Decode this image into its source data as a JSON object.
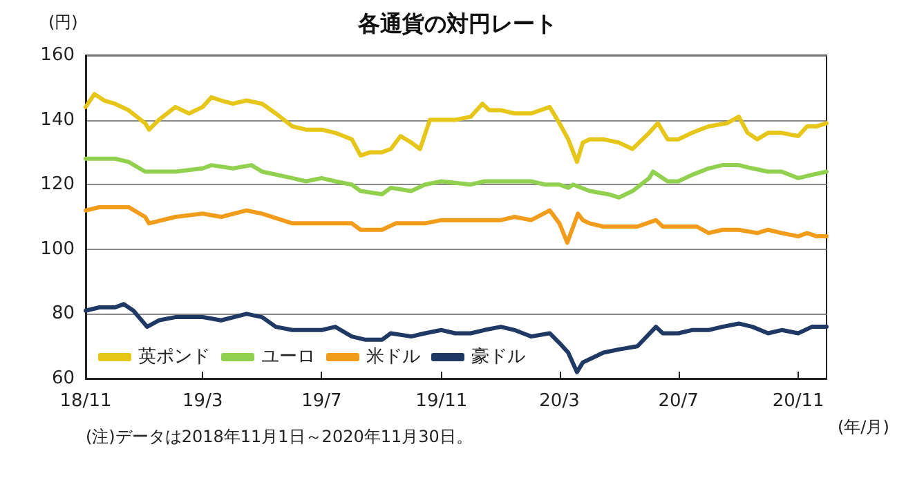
{
  "chart_data": {
    "type": "line",
    "title": "各通貨の対円レート",
    "ylabel": "(円)",
    "xlabel": "(年/月)",
    "annotations": [
      "(注)データは2018年11月1日～2020年11月30日。"
    ],
    "xlim": [
      "2018-11-01",
      "2020-11-30"
    ],
    "xticks": [
      {
        "value": "2018-11-01",
        "label": "18/11"
      },
      {
        "value": "2019-03-01",
        "label": "19/3"
      },
      {
        "value": "2019-07-01",
        "label": "19/7"
      },
      {
        "value": "2019-11-01",
        "label": "19/11"
      },
      {
        "value": "2020-03-01",
        "label": "20/3"
      },
      {
        "value": "2020-07-01",
        "label": "20/7"
      },
      {
        "value": "2020-11-01",
        "label": "20/11"
      }
    ],
    "ylim": [
      60,
      160
    ],
    "yticks": [
      60,
      80,
      100,
      120,
      140,
      160
    ],
    "grid": "y",
    "legend": "bottom left",
    "series": [
      {
        "name": "英ポンド",
        "color": "#e6c619",
        "x": [
          "2018-11-01",
          "2018-11-10",
          "2018-11-20",
          "2018-12-01",
          "2018-12-15",
          "2019-01-01",
          "2019-01-05",
          "2019-01-15",
          "2019-02-01",
          "2019-02-15",
          "2019-03-01",
          "2019-03-10",
          "2019-03-20",
          "2019-04-01",
          "2019-04-15",
          "2019-05-01",
          "2019-05-15",
          "2019-06-01",
          "2019-06-15",
          "2019-07-01",
          "2019-07-15",
          "2019-08-01",
          "2019-08-10",
          "2019-08-20",
          "2019-09-01",
          "2019-09-10",
          "2019-09-20",
          "2019-10-01",
          "2019-10-10",
          "2019-10-20",
          "2019-11-01",
          "2019-11-15",
          "2019-12-01",
          "2019-12-13",
          "2019-12-20",
          "2020-01-01",
          "2020-01-15",
          "2020-02-01",
          "2020-02-20",
          "2020-03-01",
          "2020-03-10",
          "2020-03-19",
          "2020-03-25",
          "2020-04-01",
          "2020-04-15",
          "2020-05-01",
          "2020-05-15",
          "2020-06-01",
          "2020-06-10",
          "2020-06-20",
          "2020-07-01",
          "2020-07-15",
          "2020-08-01",
          "2020-08-20",
          "2020-09-01",
          "2020-09-10",
          "2020-09-20",
          "2020-10-01",
          "2020-10-15",
          "2020-11-01",
          "2020-11-10",
          "2020-11-20",
          "2020-11-30"
        ],
        "values": [
          144,
          148,
          146,
          145,
          143,
          139,
          137,
          140,
          144,
          142,
          144,
          147,
          146,
          145,
          146,
          145,
          142,
          138,
          137,
          137,
          136,
          134,
          129,
          130,
          130,
          131,
          135,
          133,
          131,
          140,
          140,
          140,
          141,
          145,
          143,
          143,
          142,
          142,
          144,
          139,
          134,
          127,
          133,
          134,
          134,
          133,
          131,
          136,
          139,
          134,
          134,
          136,
          138,
          139,
          141,
          136,
          134,
          136,
          136,
          135,
          138,
          138,
          139
        ]
      },
      {
        "name": "ユーロ",
        "color": "#92d050",
        "x": [
          "2018-11-01",
          "2018-12-01",
          "2018-12-15",
          "2019-01-01",
          "2019-02-01",
          "2019-03-01",
          "2019-03-10",
          "2019-04-01",
          "2019-04-20",
          "2019-05-01",
          "2019-06-01",
          "2019-06-15",
          "2019-07-01",
          "2019-07-15",
          "2019-08-01",
          "2019-08-10",
          "2019-09-01",
          "2019-09-10",
          "2019-10-01",
          "2019-10-15",
          "2019-11-01",
          "2019-12-01",
          "2019-12-15",
          "2020-01-01",
          "2020-02-01",
          "2020-02-15",
          "2020-03-01",
          "2020-03-10",
          "2020-03-15",
          "2020-04-01",
          "2020-04-20",
          "2020-05-01",
          "2020-05-15",
          "2020-06-01",
          "2020-06-05",
          "2020-06-20",
          "2020-07-01",
          "2020-07-15",
          "2020-08-01",
          "2020-08-15",
          "2020-09-01",
          "2020-09-15",
          "2020-10-01",
          "2020-10-15",
          "2020-11-01",
          "2020-11-15",
          "2020-11-30"
        ],
        "values": [
          128,
          128,
          127,
          124,
          124,
          125,
          126,
          125,
          126,
          124,
          122,
          121,
          122,
          121,
          120,
          118,
          117,
          119,
          118,
          120,
          121,
          120,
          121,
          121,
          121,
          120,
          120,
          119,
          120,
          118,
          117,
          116,
          118,
          122,
          124,
          121,
          121,
          123,
          125,
          126,
          126,
          125,
          124,
          124,
          122,
          123,
          124
        ]
      },
      {
        "name": "米ドル",
        "color": "#f29c1b",
        "x": [
          "2018-11-01",
          "2018-11-15",
          "2018-12-01",
          "2018-12-15",
          "2019-01-01",
          "2019-01-05",
          "2019-02-01",
          "2019-03-01",
          "2019-03-20",
          "2019-04-15",
          "2019-05-01",
          "2019-06-01",
          "2019-06-15",
          "2019-07-01",
          "2019-07-15",
          "2019-08-01",
          "2019-08-10",
          "2019-09-01",
          "2019-09-15",
          "2019-10-01",
          "2019-10-15",
          "2019-11-01",
          "2019-12-01",
          "2020-01-01",
          "2020-01-15",
          "2020-02-01",
          "2020-02-20",
          "2020-03-01",
          "2020-03-09",
          "2020-03-20",
          "2020-03-25",
          "2020-04-01",
          "2020-04-15",
          "2020-05-01",
          "2020-05-20",
          "2020-06-08",
          "2020-06-15",
          "2020-07-01",
          "2020-07-20",
          "2020-08-01",
          "2020-08-15",
          "2020-09-01",
          "2020-09-20",
          "2020-10-01",
          "2020-10-15",
          "2020-11-01",
          "2020-11-10",
          "2020-11-20",
          "2020-11-30"
        ],
        "values": [
          112,
          113,
          113,
          113,
          110,
          108,
          110,
          111,
          110,
          112,
          111,
          108,
          108,
          108,
          108,
          108,
          106,
          106,
          108,
          108,
          108,
          109,
          109,
          109,
          110,
          109,
          112,
          108,
          102,
          111,
          109,
          108,
          107,
          107,
          107,
          109,
          107,
          107,
          107,
          105,
          106,
          106,
          105,
          106,
          105,
          104,
          105,
          104,
          104
        ]
      },
      {
        "name": "豪ドル",
        "color": "#1f3864",
        "x": [
          "2018-11-01",
          "2018-11-15",
          "2018-12-01",
          "2018-12-10",
          "2018-12-20",
          "2019-01-03",
          "2019-01-15",
          "2019-02-01",
          "2019-03-01",
          "2019-03-20",
          "2019-04-15",
          "2019-05-01",
          "2019-05-15",
          "2019-06-01",
          "2019-06-15",
          "2019-07-01",
          "2019-07-15",
          "2019-08-01",
          "2019-08-15",
          "2019-09-01",
          "2019-09-10",
          "2019-10-01",
          "2019-10-15",
          "2019-11-01",
          "2019-11-15",
          "2019-12-01",
          "2019-12-15",
          "2020-01-01",
          "2020-01-15",
          "2020-02-01",
          "2020-02-20",
          "2020-03-01",
          "2020-03-10",
          "2020-03-19",
          "2020-03-25",
          "2020-04-01",
          "2020-04-15",
          "2020-05-01",
          "2020-05-20",
          "2020-06-08",
          "2020-06-15",
          "2020-07-01",
          "2020-07-15",
          "2020-08-01",
          "2020-08-15",
          "2020-09-01",
          "2020-09-15",
          "2020-10-01",
          "2020-10-15",
          "2020-11-01",
          "2020-11-15",
          "2020-11-30"
        ],
        "values": [
          81,
          82,
          82,
          83,
          81,
          76,
          78,
          79,
          79,
          78,
          80,
          79,
          76,
          75,
          75,
          75,
          76,
          73,
          72,
          72,
          74,
          73,
          74,
          75,
          74,
          74,
          75,
          76,
          75,
          73,
          74,
          71,
          68,
          62,
          65,
          66,
          68,
          69,
          70,
          76,
          74,
          74,
          75,
          75,
          76,
          77,
          76,
          74,
          75,
          74,
          76,
          76
        ]
      }
    ]
  }
}
